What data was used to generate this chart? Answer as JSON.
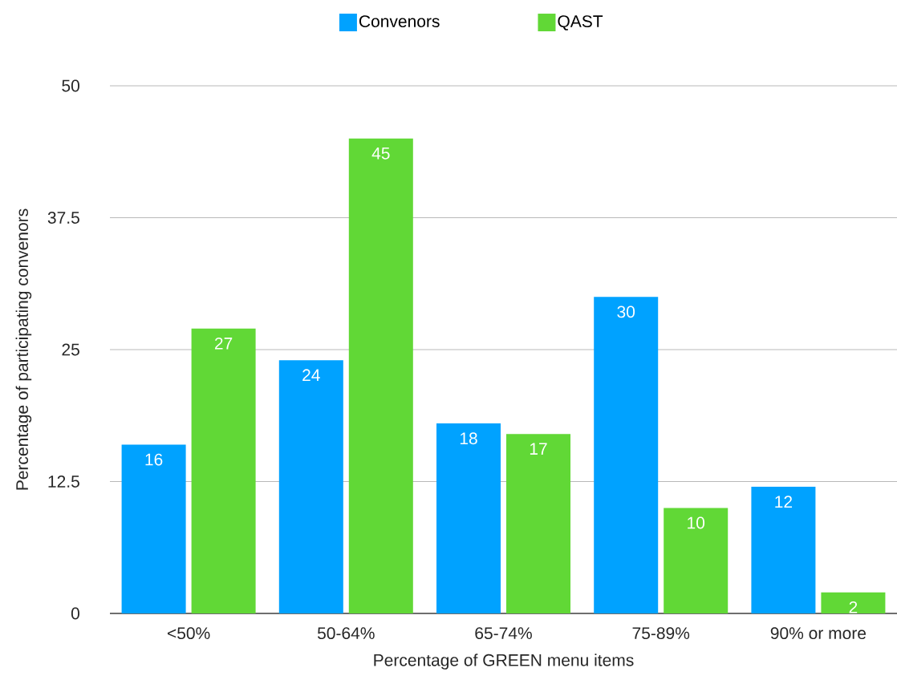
{
  "chart_data": {
    "type": "bar",
    "xlabel": "Percentage of GREEN menu items",
    "ylabel": "Percentage of participating convenors",
    "categories": [
      "<50%",
      "50-64%",
      "65-74%",
      "75-89%",
      "90% or more"
    ],
    "series": [
      {
        "name": "Convenors",
        "color": "#00a2ff",
        "values": [
          16,
          24,
          18,
          30,
          12
        ]
      },
      {
        "name": "QAST",
        "color": "#61d836",
        "values": [
          27,
          45,
          17,
          10,
          2
        ]
      }
    ],
    "ylim": [
      0,
      50
    ],
    "yticks": [
      0,
      12.5,
      25,
      37.5,
      50
    ],
    "grid": "y",
    "legend": "top",
    "data_labels": true
  }
}
